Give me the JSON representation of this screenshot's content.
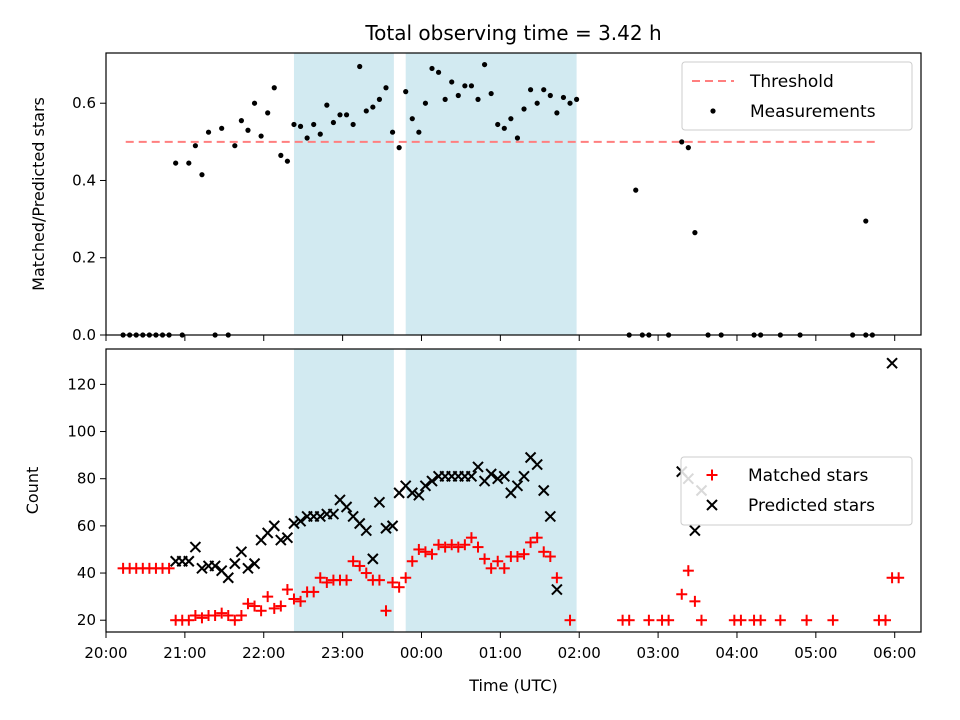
{
  "chart_data": [
    {
      "type": "scatter",
      "title": "Total observing time = 3.42 h",
      "xlabel": "",
      "ylabel": "Matched/Predicted stars",
      "xlim": [
        "20:00",
        "06:20"
      ],
      "ylim": [
        0,
        0.73
      ],
      "yticks": [
        0.0,
        0.2,
        0.4,
        0.6
      ],
      "ytick_labels": [
        "0.0",
        "0.2",
        "0.4",
        "0.6"
      ],
      "x_tick_labels_visible": false,
      "shaded_intervals": [
        [
          "22:23",
          "23:39"
        ],
        [
          "23:48",
          "01:58"
        ]
      ],
      "shade_color": "#add8e6",
      "legend": {
        "placement": "top-right",
        "entries": [
          {
            "label": "Threshold",
            "marker": "dashed-line",
            "color": "#ff7f7f"
          },
          {
            "label": "Measurements",
            "marker": "dot",
            "color": "#000000"
          }
        ]
      },
      "threshold": {
        "name": "Threshold",
        "value": 0.5,
        "x_range": [
          "20:15",
          "05:45"
        ],
        "color": "#ff7f7f",
        "style": "dashed"
      },
      "series": [
        {
          "name": "Measurements",
          "color": "#000000",
          "marker": "dot",
          "points": [
            [
              "20:13",
              0
            ],
            [
              "20:18",
              0
            ],
            [
              "20:23",
              0
            ],
            [
              "20:28",
              0
            ],
            [
              "20:33",
              0
            ],
            [
              "20:38",
              0
            ],
            [
              "20:43",
              0
            ],
            [
              "20:48",
              0
            ],
            [
              "20:53",
              0.445
            ],
            [
              "20:58",
              0
            ],
            [
              "21:03",
              0.445
            ],
            [
              "21:08",
              0.49
            ],
            [
              "21:13",
              0.415
            ],
            [
              "21:18",
              0.525
            ],
            [
              "21:23",
              0
            ],
            [
              "21:28",
              0.535
            ],
            [
              "21:33",
              0
            ],
            [
              "21:38",
              0.49
            ],
            [
              "21:43",
              0.555
            ],
            [
              "21:48",
              0.53
            ],
            [
              "21:53",
              0.6
            ],
            [
              "21:58",
              0.515
            ],
            [
              "22:03",
              0.575
            ],
            [
              "22:08",
              0.64
            ],
            [
              "22:13",
              0.465
            ],
            [
              "22:18",
              0.45
            ],
            [
              "22:23",
              0.545
            ],
            [
              "22:28",
              0.54
            ],
            [
              "22:33",
              0.51
            ],
            [
              "22:38",
              0.545
            ],
            [
              "22:43",
              0.52
            ],
            [
              "22:48",
              0.595
            ],
            [
              "22:53",
              0.55
            ],
            [
              "22:58",
              0.57
            ],
            [
              "23:03",
              0.57
            ],
            [
              "23:08",
              0.545
            ],
            [
              "23:13",
              0.695
            ],
            [
              "23:18",
              0.58
            ],
            [
              "23:23",
              0.59
            ],
            [
              "23:28",
              0.61
            ],
            [
              "23:33",
              0.64
            ],
            [
              "23:38",
              0.525
            ],
            [
              "23:43",
              0.485
            ],
            [
              "23:48",
              0.63
            ],
            [
              "23:53",
              0.56
            ],
            [
              "23:58",
              0.525
            ],
            [
              "00:03",
              0.6
            ],
            [
              "00:08",
              0.69
            ],
            [
              "00:13",
              0.68
            ],
            [
              "00:18",
              0.61
            ],
            [
              "00:23",
              0.655
            ],
            [
              "00:28",
              0.62
            ],
            [
              "00:33",
              0.645
            ],
            [
              "00:38",
              0.645
            ],
            [
              "00:43",
              0.61
            ],
            [
              "00:48",
              0.7
            ],
            [
              "00:53",
              0.625
            ],
            [
              "00:58",
              0.545
            ],
            [
              "01:03",
              0.535
            ],
            [
              "01:08",
              0.56
            ],
            [
              "01:13",
              0.51
            ],
            [
              "01:18",
              0.585
            ],
            [
              "01:23",
              0.635
            ],
            [
              "01:28",
              0.6
            ],
            [
              "01:33",
              0.635
            ],
            [
              "01:38",
              0.62
            ],
            [
              "01:43",
              0.575
            ],
            [
              "01:48",
              0.615
            ],
            [
              "01:53",
              0.6
            ],
            [
              "01:58",
              0.61
            ],
            [
              "02:38",
              0
            ],
            [
              "02:53",
              0
            ],
            [
              "03:18",
              0.5
            ],
            [
              "03:23",
              0.485
            ],
            [
              "03:28",
              0.265
            ],
            [
              "02:43",
              0.375
            ],
            [
              "02:48",
              0
            ],
            [
              "03:08",
              0
            ],
            [
              "03:38",
              0
            ],
            [
              "03:48",
              0
            ],
            [
              "04:13",
              0
            ],
            [
              "04:18",
              0
            ],
            [
              "04:33",
              0
            ],
            [
              "04:48",
              0
            ],
            [
              "05:28",
              0
            ],
            [
              "05:38",
              0
            ],
            [
              "05:43",
              0
            ],
            [
              "05:38",
              0.295
            ]
          ]
        }
      ]
    },
    {
      "type": "scatter",
      "title": "",
      "xlabel": "Time (UTC)",
      "ylabel": "Count",
      "xlim": [
        "20:00",
        "06:20"
      ],
      "ylim": [
        15,
        135
      ],
      "yticks": [
        20,
        40,
        60,
        80,
        100,
        120
      ],
      "ytick_labels": [
        "20",
        "40",
        "60",
        "80",
        "100",
        "120"
      ],
      "xticks": [
        "20:00",
        "21:00",
        "22:00",
        "23:00",
        "00:00",
        "01:00",
        "02:00",
        "03:00",
        "04:00",
        "05:00",
        "06:00"
      ],
      "xtick_labels": [
        "20:00",
        "21:00",
        "22:00",
        "23:00",
        "00:00",
        "01:00",
        "02:00",
        "03:00",
        "04:00",
        "05:00",
        "06:00"
      ],
      "shaded_intervals": [
        [
          "22:23",
          "23:39"
        ],
        [
          "23:48",
          "01:58"
        ]
      ],
      "shade_color": "#add8e6",
      "legend": {
        "placement": "center-right",
        "entries": [
          {
            "label": "Matched stars",
            "marker": "plus",
            "color": "#ff0000"
          },
          {
            "label": "Predicted stars",
            "marker": "cross",
            "color": "#000000"
          }
        ]
      },
      "series": [
        {
          "name": "Matched stars",
          "color": "#ff0000",
          "marker": "plus",
          "points": [
            [
              "20:13",
              42
            ],
            [
              "20:18",
              42
            ],
            [
              "20:23",
              42
            ],
            [
              "20:28",
              42
            ],
            [
              "20:33",
              42
            ],
            [
              "20:38",
              42
            ],
            [
              "20:43",
              42
            ],
            [
              "20:48",
              42
            ],
            [
              "20:53",
              20
            ],
            [
              "20:58",
              20
            ],
            [
              "21:03",
              20
            ],
            [
              "21:08",
              22
            ],
            [
              "21:13",
              21
            ],
            [
              "21:18",
              22
            ],
            [
              "21:23",
              22
            ],
            [
              "21:28",
              23
            ],
            [
              "21:33",
              22
            ],
            [
              "21:38",
              20
            ],
            [
              "21:43",
              22
            ],
            [
              "21:48",
              27
            ],
            [
              "21:53",
              26
            ],
            [
              "21:58",
              24
            ],
            [
              "22:03",
              30
            ],
            [
              "22:08",
              25
            ],
            [
              "22:13",
              26
            ],
            [
              "22:18",
              33
            ],
            [
              "22:23",
              29
            ],
            [
              "22:28",
              28
            ],
            [
              "22:33",
              32
            ],
            [
              "22:38",
              32
            ],
            [
              "22:43",
              38
            ],
            [
              "22:48",
              36
            ],
            [
              "22:53",
              37
            ],
            [
              "22:58",
              37
            ],
            [
              "23:03",
              37
            ],
            [
              "23:08",
              45
            ],
            [
              "23:13",
              43
            ],
            [
              "23:18",
              40
            ],
            [
              "23:23",
              37
            ],
            [
              "23:28",
              37
            ],
            [
              "23:33",
              24
            ],
            [
              "23:38",
              36
            ],
            [
              "23:43",
              34
            ],
            [
              "23:48",
              38
            ],
            [
              "23:53",
              45
            ],
            [
              "23:58",
              50
            ],
            [
              "00:03",
              49
            ],
            [
              "00:08",
              48
            ],
            [
              "00:13",
              52
            ],
            [
              "00:18",
              51
            ],
            [
              "00:23",
              52
            ],
            [
              "00:28",
              51
            ],
            [
              "00:33",
              52
            ],
            [
              "00:38",
              55
            ],
            [
              "00:43",
              51
            ],
            [
              "00:48",
              46
            ],
            [
              "00:53",
              42
            ],
            [
              "00:58",
              45
            ],
            [
              "01:03",
              42
            ],
            [
              "01:08",
              47
            ],
            [
              "01:13",
              47
            ],
            [
              "01:18",
              48
            ],
            [
              "01:23",
              53
            ],
            [
              "01:28",
              55
            ],
            [
              "01:33",
              49
            ],
            [
              "01:38",
              47
            ],
            [
              "01:43",
              38
            ],
            [
              "01:53",
              20
            ],
            [
              "02:33",
              20
            ],
            [
              "02:38",
              20
            ],
            [
              "02:53",
              20
            ],
            [
              "03:03",
              20
            ],
            [
              "03:08",
              20
            ],
            [
              "03:18",
              31
            ],
            [
              "03:23",
              41
            ],
            [
              "03:28",
              28
            ],
            [
              "03:33",
              20
            ],
            [
              "03:58",
              20
            ],
            [
              "04:03",
              20
            ],
            [
              "04:13",
              20
            ],
            [
              "04:18",
              20
            ],
            [
              "04:33",
              20
            ],
            [
              "04:53",
              20
            ],
            [
              "05:13",
              20
            ],
            [
              "05:48",
              20
            ],
            [
              "05:53",
              20
            ],
            [
              "05:58",
              38
            ],
            [
              "06:03",
              38
            ]
          ]
        },
        {
          "name": "Predicted stars",
          "color": "#000000",
          "marker": "cross",
          "points": [
            [
              "20:53",
              45
            ],
            [
              "20:58",
              45
            ],
            [
              "21:03",
              45
            ],
            [
              "21:08",
              51
            ],
            [
              "21:13",
              42
            ],
            [
              "21:18",
              43
            ],
            [
              "21:23",
              43
            ],
            [
              "21:28",
              41
            ],
            [
              "21:33",
              38
            ],
            [
              "21:38",
              44
            ],
            [
              "21:43",
              49
            ],
            [
              "21:48",
              42
            ],
            [
              "21:53",
              44
            ],
            [
              "21:58",
              54
            ],
            [
              "22:03",
              57
            ],
            [
              "22:08",
              60
            ],
            [
              "22:13",
              54
            ],
            [
              "22:18",
              55
            ],
            [
              "22:23",
              61
            ],
            [
              "22:28",
              62
            ],
            [
              "22:33",
              64
            ],
            [
              "22:38",
              64
            ],
            [
              "22:43",
              64
            ],
            [
              "22:48",
              65
            ],
            [
              "22:53",
              65
            ],
            [
              "22:58",
              71
            ],
            [
              "23:03",
              68
            ],
            [
              "23:08",
              64
            ],
            [
              "23:13",
              61
            ],
            [
              "23:18",
              58
            ],
            [
              "23:23",
              46
            ],
            [
              "23:28",
              70
            ],
            [
              "23:33",
              59
            ],
            [
              "23:38",
              60
            ],
            [
              "23:43",
              74
            ],
            [
              "23:48",
              77
            ],
            [
              "23:53",
              74
            ],
            [
              "23:58",
              73
            ],
            [
              "00:03",
              77
            ],
            [
              "00:08",
              79
            ],
            [
              "00:13",
              81
            ],
            [
              "00:18",
              81
            ],
            [
              "00:23",
              81
            ],
            [
              "00:28",
              81
            ],
            [
              "00:33",
              81
            ],
            [
              "00:38",
              81
            ],
            [
              "00:43",
              85
            ],
            [
              "00:48",
              79
            ],
            [
              "00:53",
              82
            ],
            [
              "00:58",
              80
            ],
            [
              "01:03",
              81
            ],
            [
              "01:08",
              74
            ],
            [
              "01:13",
              77
            ],
            [
              "01:18",
              81
            ],
            [
              "01:23",
              89
            ],
            [
              "01:28",
              86
            ],
            [
              "01:33",
              75
            ],
            [
              "01:38",
              64
            ],
            [
              "01:43",
              33
            ],
            [
              "03:18",
              83
            ],
            [
              "03:23",
              80
            ],
            [
              "03:28",
              58
            ],
            [
              "03:33",
              75
            ],
            [
              "05:58",
              129
            ]
          ]
        }
      ]
    }
  ]
}
